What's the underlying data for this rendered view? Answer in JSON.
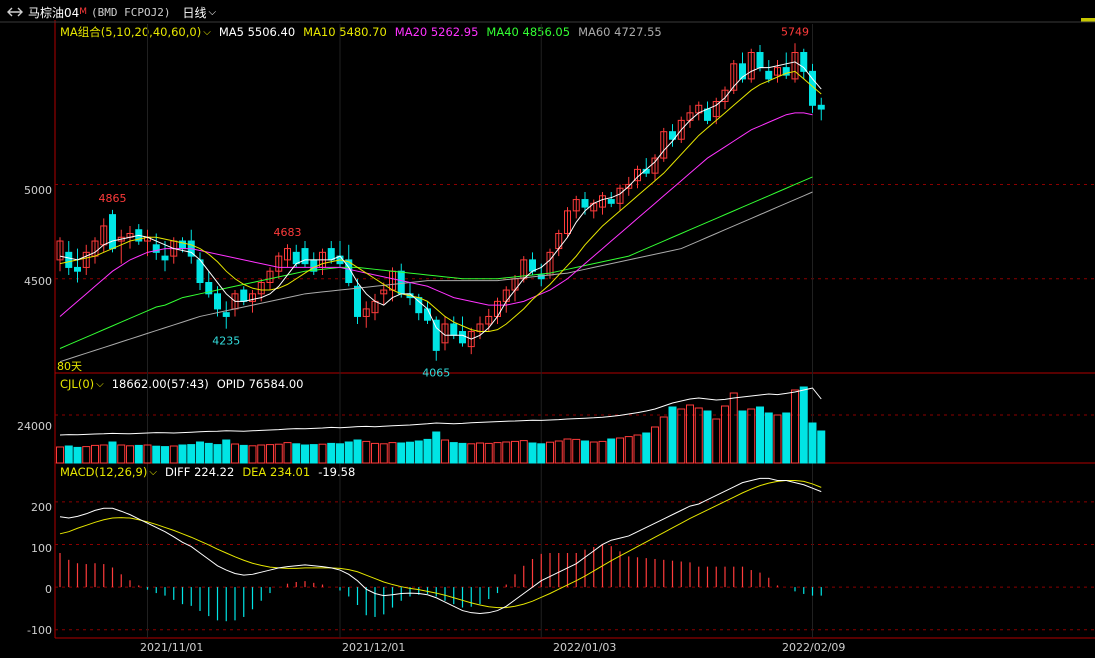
{
  "title_bar": {
    "symbol": "马棕油04",
    "superscript": "M",
    "code": "(BMD FCPOJ2)",
    "period": "日线",
    "link_icon": "link-icon"
  },
  "main_legend": {
    "name": "MA组合(5,10,20,40,60,0)",
    "items": [
      {
        "label": "MA5 5506.40",
        "color": "#ffffff"
      },
      {
        "label": "MA10 5480.70",
        "color": "#e6e600"
      },
      {
        "label": "MA20 5262.95",
        "color": "#ff33ff"
      },
      {
        "label": "MA40 4856.05",
        "color": "#33ff33"
      },
      {
        "label": "MA60 4727.55",
        "color": "#aaaaaa"
      }
    ]
  },
  "price_axis": [
    "5000",
    "4500"
  ],
  "price_annotations": [
    {
      "text": "5749",
      "color": "#ff3b3b"
    },
    {
      "text": "4865",
      "color": "#ff3b3b"
    },
    {
      "text": "4683",
      "color": "#ff3b3b"
    },
    {
      "text": "4235",
      "color": "#33dddd"
    },
    {
      "text": "4065",
      "color": "#33dddd"
    }
  ],
  "sub_label_80": "80天",
  "volume_legend": {
    "name": "CJL(0)",
    "items": [
      {
        "label": "18662.00(57:43)",
        "color": "#ffffff"
      },
      {
        "label": "OPID 76584.00",
        "color": "#ffffff"
      }
    ]
  },
  "volume_axis": [
    "24000"
  ],
  "macd_legend": {
    "name": "MACD(12,26,9)",
    "items": [
      {
        "label": "DIFF 224.22",
        "color": "#ffffff"
      },
      {
        "label": "DEA 234.01",
        "color": "#e6e600"
      },
      {
        "label": "-19.58",
        "color": "#ffffff"
      }
    ]
  },
  "macd_axis": [
    "200",
    "100",
    "0",
    "-100"
  ],
  "dates": [
    "2021/11/01",
    "2021/12/01",
    "2022/01/03",
    "2022/02/09"
  ],
  "colors": {
    "up": "#ff3b3b",
    "down": "#00e5e5",
    "grid": "#8b0000",
    "frame": "#b00000"
  },
  "chart_data": {
    "type": "candlestick",
    "price_range": [
      4000,
      5830
    ],
    "candles": [
      [
        4600,
        4720,
        4540,
        4700
      ],
      [
        4640,
        4700,
        4520,
        4560
      ],
      [
        4560,
        4660,
        4480,
        4540
      ],
      [
        4560,
        4680,
        4520,
        4640
      ],
      [
        4620,
        4720,
        4580,
        4700
      ],
      [
        4680,
        4820,
        4640,
        4780
      ],
      [
        4840,
        4865,
        4640,
        4660
      ],
      [
        4700,
        4760,
        4580,
        4720
      ],
      [
        4720,
        4780,
        4660,
        4740
      ],
      [
        4760,
        4790,
        4680,
        4700
      ],
      [
        4700,
        4760,
        4620,
        4720
      ],
      [
        4680,
        4740,
        4600,
        4640
      ],
      [
        4620,
        4700,
        4540,
        4600
      ],
      [
        4620,
        4720,
        4580,
        4700
      ],
      [
        4700,
        4720,
        4640,
        4660
      ],
      [
        4700,
        4760,
        4580,
        4620
      ],
      [
        4600,
        4640,
        4440,
        4480
      ],
      [
        4480,
        4540,
        4400,
        4420
      ],
      [
        4420,
        4460,
        4300,
        4340
      ],
      [
        4320,
        4380,
        4235,
        4300
      ],
      [
        4340,
        4440,
        4300,
        4420
      ],
      [
        4440,
        4460,
        4360,
        4380
      ],
      [
        4380,
        4440,
        4320,
        4420
      ],
      [
        4420,
        4500,
        4380,
        4480
      ],
      [
        4480,
        4560,
        4440,
        4540
      ],
      [
        4540,
        4640,
        4500,
        4620
      ],
      [
        4600,
        4683,
        4560,
        4660
      ],
      [
        4640,
        4680,
        4560,
        4580
      ],
      [
        4660,
        4700,
        4560,
        4580
      ],
      [
        4600,
        4640,
        4520,
        4540
      ],
      [
        4560,
        4660,
        4520,
        4640
      ],
      [
        4660,
        4700,
        4580,
        4600
      ],
      [
        4620,
        4700,
        4560,
        4580
      ],
      [
        4600,
        4680,
        4460,
        4480
      ],
      [
        4460,
        4500,
        4260,
        4300
      ],
      [
        4300,
        4380,
        4240,
        4340
      ],
      [
        4320,
        4420,
        4280,
        4380
      ],
      [
        4420,
        4480,
        4360,
        4440
      ],
      [
        4440,
        4560,
        4380,
        4540
      ],
      [
        4540,
        4580,
        4400,
        4420
      ],
      [
        4420,
        4480,
        4360,
        4400
      ],
      [
        4400,
        4420,
        4280,
        4320
      ],
      [
        4340,
        4380,
        4260,
        4280
      ],
      [
        4280,
        4300,
        4065,
        4120
      ],
      [
        4160,
        4300,
        4120,
        4260
      ],
      [
        4260,
        4300,
        4180,
        4200
      ],
      [
        4220,
        4300,
        4140,
        4160
      ],
      [
        4140,
        4240,
        4100,
        4220
      ],
      [
        4220,
        4300,
        4180,
        4260
      ],
      [
        4260,
        4340,
        4220,
        4300
      ],
      [
        4300,
        4400,
        4260,
        4380
      ],
      [
        4380,
        4460,
        4320,
        4440
      ],
      [
        4440,
        4520,
        4380,
        4500
      ],
      [
        4500,
        4620,
        4480,
        4600
      ],
      [
        4600,
        4640,
        4520,
        4540
      ],
      [
        4520,
        4580,
        4460,
        4500
      ],
      [
        4520,
        4660,
        4500,
        4640
      ],
      [
        4660,
        4760,
        4620,
        4740
      ],
      [
        4740,
        4880,
        4720,
        4860
      ],
      [
        4860,
        4940,
        4820,
        4920
      ],
      [
        4920,
        4960,
        4840,
        4880
      ],
      [
        4860,
        4920,
        4820,
        4900
      ],
      [
        4880,
        4960,
        4840,
        4940
      ],
      [
        4920,
        4960,
        4880,
        4900
      ],
      [
        4900,
        5000,
        4860,
        4980
      ],
      [
        4980,
        5040,
        4940,
        5000
      ],
      [
        5020,
        5100,
        4980,
        5080
      ],
      [
        5080,
        5140,
        5040,
        5060
      ],
      [
        5060,
        5160,
        5020,
        5140
      ],
      [
        5140,
        5300,
        5120,
        5280
      ],
      [
        5280,
        5320,
        5200,
        5240
      ],
      [
        5240,
        5360,
        5220,
        5340
      ],
      [
        5340,
        5420,
        5300,
        5380
      ],
      [
        5380,
        5440,
        5340,
        5420
      ],
      [
        5400,
        5440,
        5320,
        5340
      ],
      [
        5360,
        5460,
        5320,
        5440
      ],
      [
        5440,
        5520,
        5400,
        5500
      ],
      [
        5500,
        5660,
        5480,
        5640
      ],
      [
        5640,
        5700,
        5540,
        5560
      ],
      [
        5560,
        5720,
        5540,
        5700
      ],
      [
        5700,
        5740,
        5600,
        5620
      ],
      [
        5600,
        5660,
        5540,
        5560
      ],
      [
        5580,
        5660,
        5540,
        5620
      ],
      [
        5620,
        5700,
        5560,
        5580
      ],
      [
        5560,
        5749,
        5540,
        5700
      ],
      [
        5700,
        5720,
        5560,
        5600
      ],
      [
        5600,
        5640,
        5380,
        5420
      ],
      [
        5420,
        5460,
        5340,
        5400
      ]
    ],
    "ma5": [
      4620,
      4610,
      4600,
      4620,
      4640,
      4680,
      4700,
      4710,
      4720,
      4730,
      4720,
      4700,
      4680,
      4660,
      4650,
      4640,
      4600,
      4540,
      4480,
      4420,
      4380,
      4380,
      4390,
      4400,
      4420,
      4460,
      4520,
      4580,
      4600,
      4600,
      4600,
      4600,
      4620,
      4560,
      4480,
      4420,
      4380,
      4360,
      4400,
      4420,
      4420,
      4380,
      4340,
      4240,
      4200,
      4200,
      4200,
      4180,
      4200,
      4240,
      4300,
      4380,
      4440,
      4500,
      4540,
      4560,
      4600,
      4660,
      4720,
      4800,
      4860,
      4900,
      4920,
      4930,
      4950,
      4990,
      5040,
      5080,
      5120,
      5180,
      5230,
      5290,
      5340,
      5380,
      5400,
      5420,
      5460,
      5520,
      5570,
      5600,
      5620,
      5620,
      5630,
      5640,
      5650,
      5620,
      5560,
      5506
    ],
    "ma10": [
      4580,
      4590,
      4600,
      4610,
      4620,
      4640,
      4660,
      4680,
      4700,
      4710,
      4720,
      4720,
      4710,
      4700,
      4690,
      4680,
      4660,
      4630,
      4590,
      4540,
      4500,
      4470,
      4450,
      4440,
      4440,
      4450,
      4470,
      4500,
      4530,
      4560,
      4580,
      4590,
      4600,
      4590,
      4560,
      4530,
      4500,
      4470,
      4440,
      4420,
      4410,
      4400,
      4380,
      4340,
      4300,
      4270,
      4250,
      4230,
      4220,
      4220,
      4230,
      4260,
      4300,
      4340,
      4390,
      4430,
      4470,
      4520,
      4570,
      4620,
      4680,
      4730,
      4780,
      4820,
      4860,
      4900,
      4940,
      4980,
      5020,
      5060,
      5110,
      5160,
      5210,
      5260,
      5300,
      5340,
      5380,
      5420,
      5460,
      5500,
      5530,
      5550,
      5570,
      5590,
      5600,
      5560,
      5520,
      5480
    ],
    "ma20": [
      4300,
      4340,
      4380,
      4420,
      4460,
      4500,
      4540,
      4570,
      4600,
      4620,
      4640,
      4650,
      4660,
      4660,
      4660,
      4660,
      4650,
      4640,
      4630,
      4620,
      4610,
      4600,
      4590,
      4580,
      4570,
      4560,
      4560,
      4560,
      4560,
      4560,
      4560,
      4560,
      4560,
      4550,
      4540,
      4530,
      4520,
      4510,
      4500,
      4490,
      4480,
      4470,
      4460,
      4440,
      4420,
      4400,
      4390,
      4380,
      4370,
      4360,
      4360,
      4360,
      4370,
      4380,
      4400,
      4420,
      4440,
      4470,
      4500,
      4540,
      4580,
      4620,
      4660,
      4700,
      4740,
      4780,
      4820,
      4860,
      4900,
      4940,
      4980,
      5020,
      5060,
      5100,
      5140,
      5170,
      5200,
      5230,
      5260,
      5290,
      5310,
      5330,
      5350,
      5370,
      5380,
      5380,
      5370,
      5263
    ],
    "ma40": [
      4130,
      4150,
      4170,
      4190,
      4210,
      4230,
      4250,
      4270,
      4290,
      4310,
      4330,
      4350,
      4360,
      4380,
      4400,
      4410,
      4420,
      4430,
      4440,
      4450,
      4460,
      4470,
      4480,
      4490,
      4500,
      4510,
      4520,
      4530,
      4540,
      4545,
      4550,
      4555,
      4560,
      4560,
      4560,
      4555,
      4550,
      4545,
      4540,
      4535,
      4530,
      4525,
      4520,
      4515,
      4510,
      4505,
      4500,
      4500,
      4500,
      4500,
      4500,
      4505,
      4510,
      4515,
      4520,
      4525,
      4530,
      4540,
      4550,
      4560,
      4570,
      4580,
      4590,
      4600,
      4610,
      4620,
      4640,
      4660,
      4680,
      4700,
      4720,
      4740,
      4760,
      4780,
      4800,
      4820,
      4840,
      4860,
      4880,
      4900,
      4920,
      4940,
      4960,
      4980,
      5000,
      5020,
      5040,
      4856
    ],
    "ma60": [
      4060,
      4075,
      4090,
      4105,
      4120,
      4135,
      4150,
      4165,
      4180,
      4195,
      4210,
      4225,
      4240,
      4255,
      4270,
      4285,
      4300,
      4310,
      4320,
      4330,
      4340,
      4350,
      4360,
      4370,
      4380,
      4390,
      4400,
      4410,
      4420,
      4425,
      4430,
      4435,
      4440,
      4445,
      4450,
      4455,
      4460,
      4465,
      4470,
      4475,
      4480,
      4485,
      4490,
      4490,
      4490,
      4490,
      4490,
      4490,
      4490,
      4490,
      4490,
      4495,
      4500,
      4505,
      4510,
      4515,
      4520,
      4525,
      4530,
      4540,
      4550,
      4560,
      4570,
      4580,
      4590,
      4600,
      4610,
      4620,
      4630,
      4640,
      4650,
      4660,
      4680,
      4700,
      4720,
      4740,
      4760,
      4780,
      4800,
      4820,
      4840,
      4860,
      4880,
      4900,
      4920,
      4940,
      4960,
      4728
    ],
    "volume_range": [
      0,
      40000
    ],
    "volume": [
      8000,
      8500,
      7800,
      8200,
      8800,
      9000,
      10500,
      9000,
      8600,
      8800,
      9000,
      8400,
      8200,
      8500,
      9000,
      9200,
      10500,
      9800,
      9200,
      11500,
      9500,
      8800,
      8600,
      9000,
      9200,
      9400,
      10200,
      9600,
      9000,
      9200,
      9400,
      9800,
      9600,
      10500,
      11500,
      10800,
      9800,
      9600,
      10200,
      10000,
      10400,
      11000,
      11800,
      15500,
      11500,
      10200,
      9800,
      9600,
      10000,
      9800,
      10200,
      10500,
      10800,
      11200,
      10000,
      9600,
      10400,
      11000,
      12000,
      11800,
      11000,
      10500,
      10800,
      12000,
      12500,
      13200,
      14000,
      15000,
      18000,
      23000,
      28000,
      27000,
      29000,
      27500,
      26000,
      22000,
      28500,
      35000,
      26000,
      27000,
      28000,
      25000,
      24000,
      25000,
      36500,
      38000,
      20000,
      16000
    ],
    "vol_line": [
      14000,
      14200,
      14100,
      14300,
      14500,
      14600,
      14800,
      14700,
      14600,
      14800,
      15000,
      15200,
      15100,
      15000,
      15200,
      15400,
      15600,
      15800,
      15900,
      16100,
      16000,
      15900,
      16100,
      16300,
      16500,
      16700,
      17000,
      17200,
      17100,
      17300,
      17500,
      17800,
      17600,
      17900,
      18200,
      18300,
      18100,
      18400,
      18600,
      18800,
      19000,
      19300,
      19600,
      20000,
      19800,
      19600,
      19800,
      20100,
      20300,
      20500,
      20700,
      20900,
      21000,
      21200,
      21400,
      21300,
      21500,
      21700,
      22000,
      22200,
      22400,
      22600,
      22900,
      23300,
      23800,
      24500,
      25200,
      26000,
      27000,
      28500,
      30000,
      31000,
      32000,
      32500,
      32000,
      31500,
      31800,
      32500,
      33000,
      33500,
      34000,
      34500,
      34200,
      34800,
      35500,
      36500,
      37500,
      32000
    ],
    "macd_range": [
      -110,
      270
    ],
    "diff": [
      165,
      162,
      166,
      172,
      180,
      185,
      185,
      178,
      170,
      160,
      150,
      140,
      130,
      118,
      105,
      95,
      80,
      65,
      50,
      40,
      32,
      28,
      30,
      35,
      40,
      45,
      48,
      50,
      52,
      50,
      48,
      45,
      40,
      30,
      15,
      -5,
      -15,
      -20,
      -18,
      -15,
      -14,
      -15,
      -18,
      -25,
      -35,
      -45,
      -55,
      -60,
      -62,
      -60,
      -55,
      -45,
      -30,
      -15,
      0,
      15,
      25,
      35,
      45,
      55,
      70,
      85,
      100,
      110,
      115,
      120,
      130,
      140,
      150,
      160,
      170,
      180,
      190,
      195,
      205,
      215,
      225,
      235,
      245,
      250,
      255,
      255,
      250,
      250,
      245,
      240,
      232,
      224
    ],
    "dea": [
      125,
      130,
      138,
      145,
      152,
      158,
      162,
      163,
      162,
      158,
      153,
      147,
      140,
      133,
      125,
      117,
      108,
      99,
      89,
      80,
      71,
      63,
      56,
      51,
      47,
      45,
      44,
      44,
      45,
      45,
      45,
      45,
      44,
      41,
      36,
      28,
      20,
      12,
      6,
      1,
      -3,
      -6,
      -10,
      -14,
      -19,
      -25,
      -31,
      -37,
      -42,
      -46,
      -48,
      -48,
      -45,
      -40,
      -33,
      -24,
      -15,
      -5,
      5,
      15,
      26,
      38,
      50,
      62,
      73,
      84,
      95,
      106,
      117,
      128,
      139,
      150,
      161,
      171,
      181,
      191,
      201,
      211,
      221,
      230,
      238,
      244,
      248,
      250,
      250,
      248,
      242,
      234
    ],
    "macd_hist": [
      80,
      64,
      56,
      54,
      56,
      54,
      46,
      30,
      16,
      4,
      -6,
      -14,
      -20,
      -30,
      -40,
      -44,
      -56,
      -68,
      -78,
      -80,
      -78,
      -70,
      -52,
      -32,
      -14,
      0,
      8,
      12,
      14,
      10,
      6,
      0,
      -8,
      -22,
      -42,
      -66,
      -70,
      -64,
      -48,
      -32,
      -22,
      -18,
      -16,
      -22,
      -32,
      -40,
      -48,
      -46,
      -40,
      -28,
      -14,
      6,
      30,
      50,
      66,
      78,
      80,
      80,
      80,
      80,
      88,
      94,
      100,
      96,
      84,
      72,
      70,
      68,
      66,
      64,
      62,
      60,
      58,
      48,
      48,
      48,
      48,
      48,
      48,
      40,
      34,
      22,
      4,
      0,
      -10,
      -16,
      -20,
      -20
    ]
  }
}
